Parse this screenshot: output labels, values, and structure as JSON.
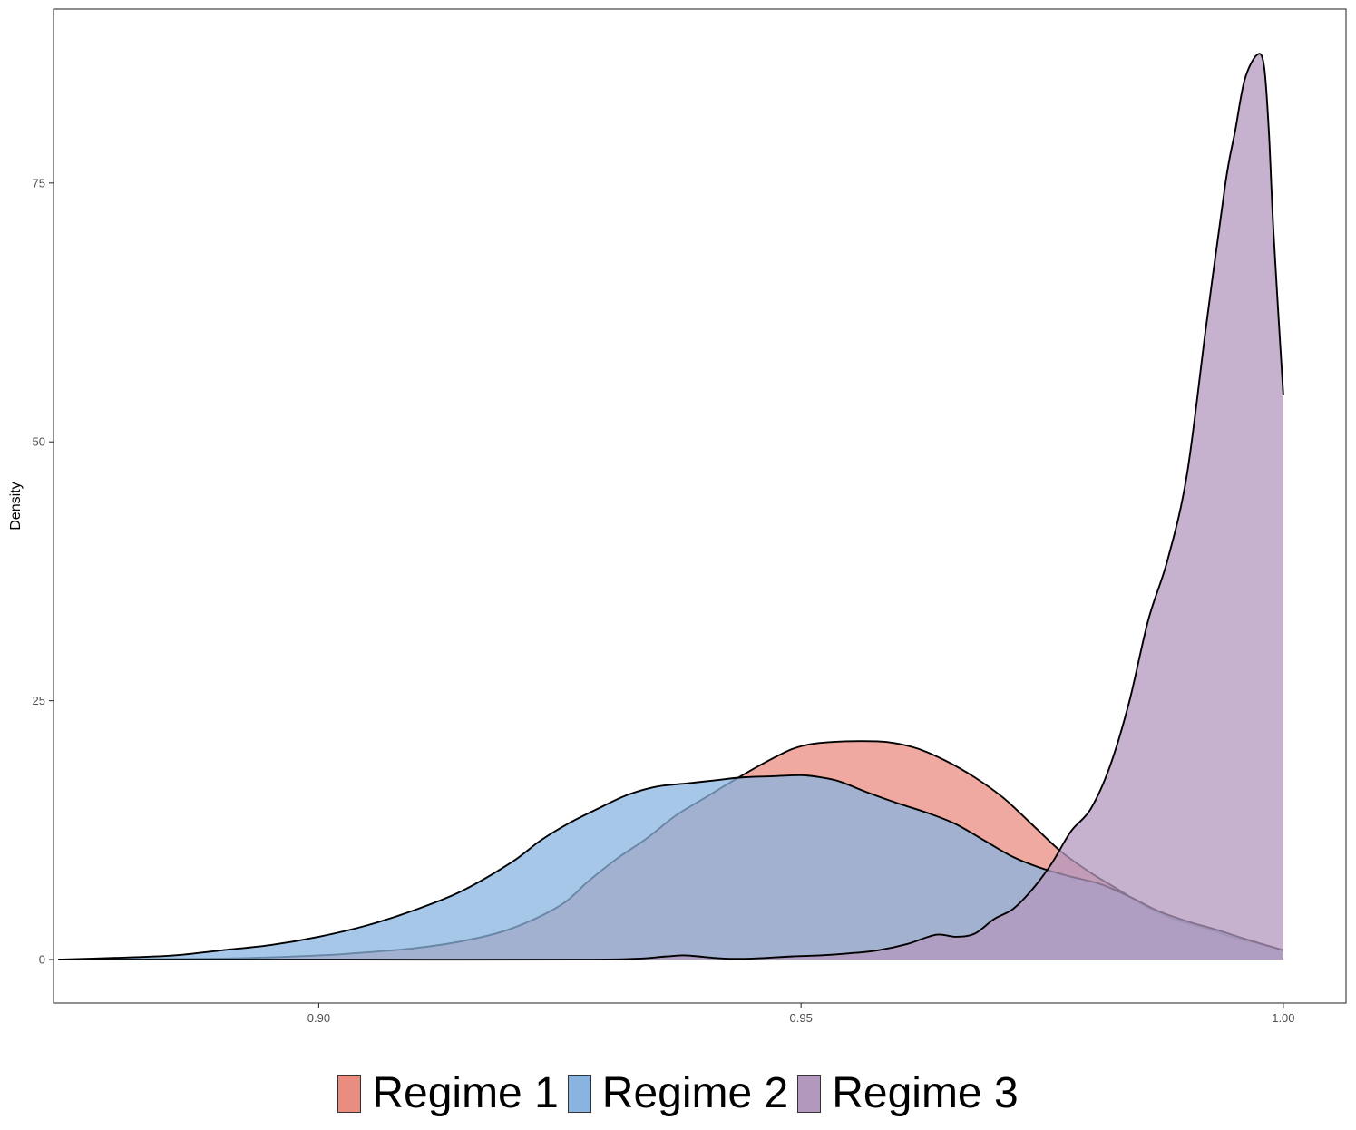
{
  "chart_data": {
    "type": "area",
    "title": "",
    "xlabel": "",
    "ylabel": "Density",
    "xlim": [
      0.8725,
      1.0065
    ],
    "ylim": [
      -4.2,
      91.8
    ],
    "x_ticks": [
      0.9,
      0.95,
      1.0
    ],
    "x_tick_labels": [
      "0.90",
      "0.95",
      "1.00"
    ],
    "y_ticks": [
      0,
      25,
      50,
      75
    ],
    "y_tick_labels": [
      "0",
      "25",
      "50",
      "75"
    ],
    "grid": false,
    "legend_position": "bottom",
    "series": [
      {
        "name": "Regime 1",
        "color": "#EA8C80",
        "fill_opacity": 0.75,
        "x": [
          0.873,
          0.89,
          0.9,
          0.905,
          0.91,
          0.915,
          0.92,
          0.925,
          0.928,
          0.931,
          0.934,
          0.937,
          0.94,
          0.943,
          0.946,
          0.949,
          0.951,
          0.953,
          0.956,
          0.959,
          0.962,
          0.965,
          0.968,
          0.971,
          0.974,
          0.977,
          0.98,
          0.983,
          0.986,
          0.989,
          0.992,
          0.995,
          0.998,
          1.0
        ],
        "y": [
          0,
          0.1,
          0.4,
          0.7,
          1.1,
          1.8,
          3.0,
          5.2,
          7.6,
          9.8,
          11.7,
          13.9,
          15.6,
          17.3,
          18.9,
          20.3,
          20.8,
          21.0,
          21.1,
          21.0,
          20.4,
          19.2,
          17.6,
          15.6,
          13.0,
          10.4,
          8.4,
          6.7,
          5.0,
          3.8,
          3.0,
          2.1,
          1.4,
          0.9
        ]
      },
      {
        "name": "Regime 2",
        "color": "#8AB4E0",
        "fill_opacity": 0.75,
        "x": [
          0.873,
          0.88,
          0.885,
          0.89,
          0.895,
          0.9,
          0.905,
          0.91,
          0.915,
          0.92,
          0.923,
          0.926,
          0.929,
          0.932,
          0.935,
          0.938,
          0.941,
          0.944,
          0.947,
          0.95,
          0.952,
          0.954,
          0.957,
          0.96,
          0.963,
          0.966,
          0.969,
          0.972,
          0.975,
          0.978,
          0.981,
          0.984,
          0.987,
          0.99,
          0.993,
          0.996,
          1.0
        ],
        "y": [
          0,
          0.2,
          0.4,
          0.9,
          1.4,
          2.2,
          3.3,
          4.8,
          6.7,
          9.4,
          11.5,
          13.2,
          14.6,
          15.9,
          16.7,
          17.0,
          17.3,
          17.6,
          17.7,
          17.8,
          17.6,
          17.2,
          16.1,
          15.1,
          14.2,
          13.1,
          11.5,
          9.9,
          8.8,
          8.0,
          7.3,
          6.1,
          4.7,
          3.7,
          2.9,
          2.0,
          0.9
        ]
      },
      {
        "name": "Regime 3",
        "color": "#B398BE",
        "fill_opacity": 0.75,
        "x": [
          0.873,
          0.9,
          0.929,
          0.936,
          0.938,
          0.942,
          0.945,
          0.949,
          0.952,
          0.955,
          0.958,
          0.961,
          0.964,
          0.966,
          0.968,
          0.97,
          0.972,
          0.974,
          0.976,
          0.978,
          0.98,
          0.982,
          0.984,
          0.986,
          0.988,
          0.99,
          0.992,
          0.994,
          0.995,
          0.996,
          0.9973,
          0.998,
          0.9985,
          0.999,
          1.0
        ],
        "y": [
          0,
          0,
          0,
          0.3,
          0.4,
          0.1,
          0.1,
          0.3,
          0.4,
          0.6,
          0.9,
          1.5,
          2.4,
          2.2,
          2.5,
          3.9,
          4.9,
          6.8,
          9.3,
          12.4,
          14.5,
          18.6,
          24.8,
          32.8,
          38.6,
          46.8,
          61.2,
          75.0,
          80.0,
          85.0,
          87.4,
          86.3,
          80.0,
          70.0,
          54.5
        ]
      }
    ]
  },
  "legend": {
    "items": [
      {
        "label": "Regime 1",
        "color": "#EA8C80"
      },
      {
        "label": "Regime 2",
        "color": "#8AB4E0"
      },
      {
        "label": "Regime 3",
        "color": "#B398BE"
      }
    ]
  }
}
